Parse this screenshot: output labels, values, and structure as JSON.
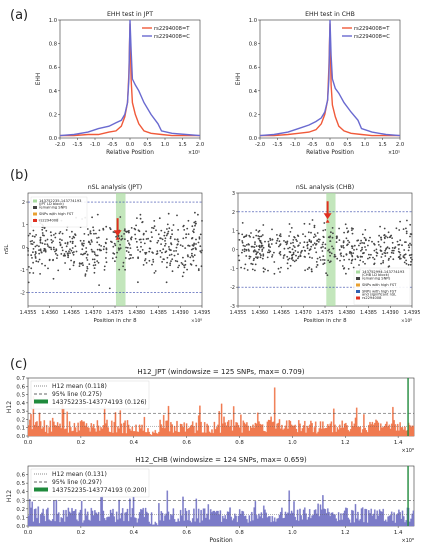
{
  "panel_labels": [
    "(a)",
    "(b)",
    "(c)"
  ],
  "chart_data": [
    {
      "type": "line",
      "id": "ehh_jpt",
      "title": "EHH test in JPT",
      "xlabel": "Relative Position",
      "ylabel": "EHH",
      "x_exponent": "×10⁵",
      "xlim": [
        -2.0,
        2.0
      ],
      "ylim": [
        0,
        1.0
      ],
      "xticks": [
        "-2.0",
        "-1.5",
        "-1.0",
        "-0.5",
        "0.0",
        "0.5",
        "1.0",
        "1.5",
        "2.0"
      ],
      "yticks": [
        "0.0",
        "0.2",
        "0.4",
        "0.6",
        "0.8",
        "1.0"
      ],
      "legend_position": "top-right",
      "series": [
        {
          "name": "rs2294008=T",
          "color": "#f05a3a",
          "x": [
            -2.0,
            -1.6,
            -1.2,
            -0.9,
            -0.6,
            -0.4,
            -0.25,
            -0.15,
            -0.07,
            -0.03,
            0.0,
            0.0,
            0.03,
            0.07,
            0.15,
            0.25,
            0.4,
            0.6,
            0.9,
            1.2,
            1.6,
            2.0
          ],
          "y": [
            0.02,
            0.02,
            0.03,
            0.03,
            0.05,
            0.06,
            0.1,
            0.18,
            0.3,
            0.55,
            0.97,
            0.97,
            0.5,
            0.3,
            0.2,
            0.12,
            0.06,
            0.04,
            0.03,
            0.02,
            0.02,
            0.02
          ]
        },
        {
          "name": "rs2294008=C",
          "color": "#6a6ad0",
          "x": [
            -2.0,
            -1.6,
            -1.2,
            -0.9,
            -0.6,
            -0.4,
            -0.25,
            -0.15,
            -0.07,
            -0.03,
            0.0,
            0.0,
            0.03,
            0.07,
            0.15,
            0.25,
            0.4,
            0.6,
            0.8,
            0.9,
            1.2,
            1.6,
            2.0
          ],
          "y": [
            0.02,
            0.03,
            0.05,
            0.08,
            0.1,
            0.13,
            0.15,
            0.2,
            0.3,
            0.5,
            1.0,
            1.0,
            0.75,
            0.5,
            0.45,
            0.4,
            0.3,
            0.2,
            0.12,
            0.06,
            0.04,
            0.03,
            0.02
          ]
        }
      ]
    },
    {
      "type": "line",
      "id": "ehh_chb",
      "title": "EHH test in CHB",
      "xlabel": "Relative Position",
      "ylabel": "EHH",
      "x_exponent": "×10⁵",
      "xlim": [
        -2.0,
        2.0
      ],
      "ylim": [
        0,
        1.0
      ],
      "xticks": [
        "-2.0",
        "-1.5",
        "-1.0",
        "-0.5",
        "0.0",
        "0.5",
        "1.0",
        "1.5",
        "2.0"
      ],
      "yticks": [
        "0.0",
        "0.2",
        "0.4",
        "0.6",
        "0.8",
        "1.0"
      ],
      "legend_position": "top-right",
      "series": [
        {
          "name": "rs2294008=T",
          "color": "#f05a3a",
          "x": [
            -2.0,
            -1.6,
            -1.2,
            -0.9,
            -0.6,
            -0.4,
            -0.25,
            -0.15,
            -0.07,
            -0.03,
            0.0,
            0.0,
            0.03,
            0.07,
            0.15,
            0.25,
            0.4,
            0.6,
            0.9,
            1.2,
            1.6,
            2.0
          ],
          "y": [
            0.02,
            0.02,
            0.03,
            0.04,
            0.05,
            0.07,
            0.12,
            0.2,
            0.32,
            0.6,
            0.97,
            0.97,
            0.45,
            0.28,
            0.18,
            0.1,
            0.06,
            0.04,
            0.03,
            0.02,
            0.02,
            0.02
          ]
        },
        {
          "name": "rs2294008=C",
          "color": "#6a6ad0",
          "x": [
            -2.0,
            -1.6,
            -1.2,
            -0.9,
            -0.6,
            -0.4,
            -0.25,
            -0.15,
            -0.07,
            -0.03,
            0.0,
            0.0,
            0.03,
            0.07,
            0.15,
            0.25,
            0.4,
            0.6,
            0.8,
            0.9,
            1.2,
            1.6,
            2.0
          ],
          "y": [
            0.02,
            0.03,
            0.05,
            0.08,
            0.11,
            0.14,
            0.17,
            0.22,
            0.32,
            0.5,
            1.0,
            1.0,
            0.7,
            0.5,
            0.42,
            0.38,
            0.3,
            0.22,
            0.15,
            0.08,
            0.05,
            0.03,
            0.02
          ]
        }
      ]
    },
    {
      "type": "scatter",
      "id": "nsl_jpt",
      "title": "nSL analysis (JPT)",
      "xlabel": "Position in chr 8",
      "ylabel": "nSL",
      "x_exponent": "×10⁸",
      "xlim": [
        1.4355,
        1.4395
      ],
      "ylim": [
        -2.6,
        2.4
      ],
      "xticks": [
        "1.4355",
        "1.4360",
        "1.4365",
        "1.4370",
        "1.4375",
        "1.4380",
        "1.4385",
        "1.4390",
        "1.4395"
      ],
      "yticks": [
        "-2",
        "-1",
        "0",
        "1",
        "2"
      ],
      "threshold_lines": [
        2,
        -2
      ],
      "highlight_band": [
        1.43752235,
        1.43774193
      ],
      "band_label": "143752235-143774193 (JPT LD block)",
      "legend_position": "top-left",
      "legend": [
        "143752235-143774193\n(JPT LD block)",
        "remaining SNPs",
        "SNPs with high FST",
        "rs2294008"
      ],
      "point_count": 520,
      "highlight_snp": {
        "name": "rs2294008",
        "x": 1.43756,
        "y": 0.4
      }
    },
    {
      "type": "scatter",
      "id": "nsl_chb",
      "title": "nSL analysis (CHB)",
      "xlabel": "Position in chr 8",
      "ylabel": "",
      "x_exponent": "×10⁸",
      "xlim": [
        1.4355,
        1.4395
      ],
      "ylim": [
        -3.0,
        3.0
      ],
      "xticks": [
        "1.4355",
        "1.4360",
        "1.4365",
        "1.4370",
        "1.4375",
        "1.4380",
        "1.4385",
        "1.4390",
        "1.4395"
      ],
      "yticks": [
        "-3",
        "-2",
        "-1",
        "0",
        "1",
        "2",
        "3"
      ],
      "threshold_lines": [
        2,
        -2
      ],
      "highlight_band": [
        1.43752994,
        1.43774193
      ],
      "band_label": "143752994-143774193 (CHB LD block)",
      "legend_position": "lower-right",
      "legend": [
        "143752994-143774193\n(CHB LD block)",
        "remaining SNPs",
        "SNPs with high FST",
        "SNPs with high FST\nand significant nSL",
        "rs2294008"
      ],
      "point_count": 520,
      "highlight_snp": {
        "name": "rs2294008",
        "x": 1.43756,
        "y": 1.5
      }
    },
    {
      "type": "area",
      "id": "h12_jpt",
      "title": "H12_JPT (windowsize = 125 SNPs, max= 0.709)",
      "xlabel": "",
      "ylabel": "H12",
      "x_exponent": "×10⁸",
      "xlim": [
        0,
        1.46
      ],
      "ylim": [
        0,
        0.7
      ],
      "xticks": [
        "0.0",
        "0.2",
        "0.4",
        "0.6",
        "0.8",
        "1.0",
        "1.2",
        "1.4"
      ],
      "yticks": [
        "0.0",
        "0.1",
        "0.2",
        "0.3",
        "0.4",
        "0.5",
        "0.6",
        "0.7"
      ],
      "color": "#f07a50",
      "mean": 0.118,
      "line95": 0.275,
      "highlight_region": 1.4375,
      "legend_position": "top-left",
      "legend": [
        "H12 mean (0.118)",
        "95% line (0.275)",
        "143752235-143774193 (0.126)"
      ]
    },
    {
      "type": "area",
      "id": "h12_chb",
      "title": "H12_CHB (windowsize = 124 SNPs, max= 0.659)",
      "xlabel": "Position",
      "ylabel": "H12",
      "x_exponent": "×10⁸",
      "xlim": [
        0,
        1.46
      ],
      "ylim": [
        0,
        0.7
      ],
      "xticks": [
        "0.0",
        "0.2",
        "0.4",
        "0.6",
        "0.8",
        "1.0",
        "1.2",
        "1.4"
      ],
      "yticks": [
        "0.0",
        "0.1",
        "0.2",
        "0.3",
        "0.4",
        "0.5",
        "0.6"
      ],
      "color": "#7b7bc8",
      "mean": 0.131,
      "line95": 0.297,
      "highlight_region": 1.4375,
      "legend_position": "top-left",
      "legend": [
        "H12 mean (0.131)",
        "95% line (0.297)",
        "143752235-143774193 (0.200)"
      ]
    }
  ]
}
